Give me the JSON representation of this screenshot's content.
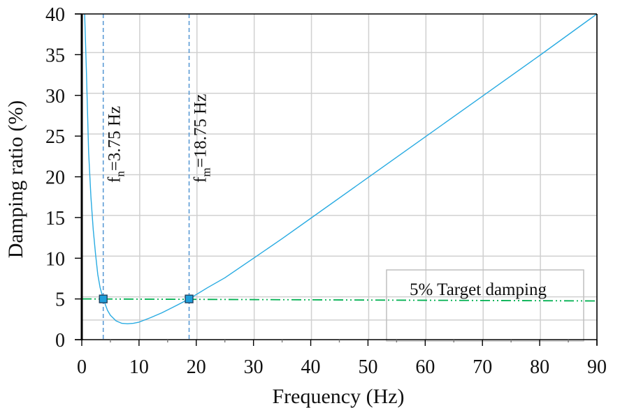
{
  "chart_data": {
    "type": "line",
    "title": "",
    "xlabel": "Frequency (Hz)",
    "ylabel": "Damping ratio (%)",
    "xlim": [
      0,
      90
    ],
    "ylim": [
      0,
      40
    ],
    "xticks": [
      0,
      10,
      20,
      30,
      40,
      50,
      60,
      70,
      80,
      90
    ],
    "yticks": [
      0,
      5,
      10,
      15,
      20,
      25,
      30,
      35,
      40
    ],
    "grid": true,
    "series": [
      {
        "name": "Damping ratio",
        "color": "#29abe2",
        "x": [
          0.5,
          0.8,
          1.2,
          1.6,
          2.0,
          2.4,
          2.8,
          3.2,
          3.75,
          4.5,
          5.0,
          6.0,
          7.0,
          8.0,
          9.0,
          10.0,
          12.0,
          14.0,
          16.0,
          18.75,
          22.0,
          25.0,
          30.0,
          35.0,
          40.0,
          50.0,
          60.0,
          70.0,
          80.0,
          90.0
        ],
        "y": [
          40,
          33,
          23,
          17.5,
          13.5,
          10.5,
          8.0,
          6.4,
          5.0,
          3.6,
          3.0,
          2.3,
          2.0,
          1.95,
          2.0,
          2.15,
          2.7,
          3.3,
          4.0,
          5.0,
          6.4,
          7.6,
          10.0,
          12.4,
          14.9,
          19.9,
          24.9,
          29.9,
          34.9,
          40.0
        ]
      },
      {
        "name": "5% Target damping",
        "color": "#00b050",
        "style": "dash-dot",
        "x": [
          0,
          90
        ],
        "y": [
          5.0,
          4.75
        ]
      }
    ],
    "markers": [
      {
        "x": 3.75,
        "y": 5,
        "color": "#1e9fdb"
      },
      {
        "x": 18.75,
        "y": 5,
        "color": "#1e9fdb"
      }
    ],
    "vlines": [
      {
        "x": 3.75,
        "color": "#5b9bd5",
        "style": "dashed",
        "label_main": "f",
        "label_sub": "n",
        "label_rest": "=3.75 Hz"
      },
      {
        "x": 18.75,
        "color": "#5b9bd5",
        "style": "dashed",
        "label_main": "f",
        "label_sub": "m",
        "label_rest": "=18.75 Hz"
      }
    ],
    "legend": {
      "text": "5% Target damping",
      "position": "lower right"
    },
    "annotations": [
      "fn=3.75 Hz",
      "fm=18.75 Hz"
    ]
  }
}
